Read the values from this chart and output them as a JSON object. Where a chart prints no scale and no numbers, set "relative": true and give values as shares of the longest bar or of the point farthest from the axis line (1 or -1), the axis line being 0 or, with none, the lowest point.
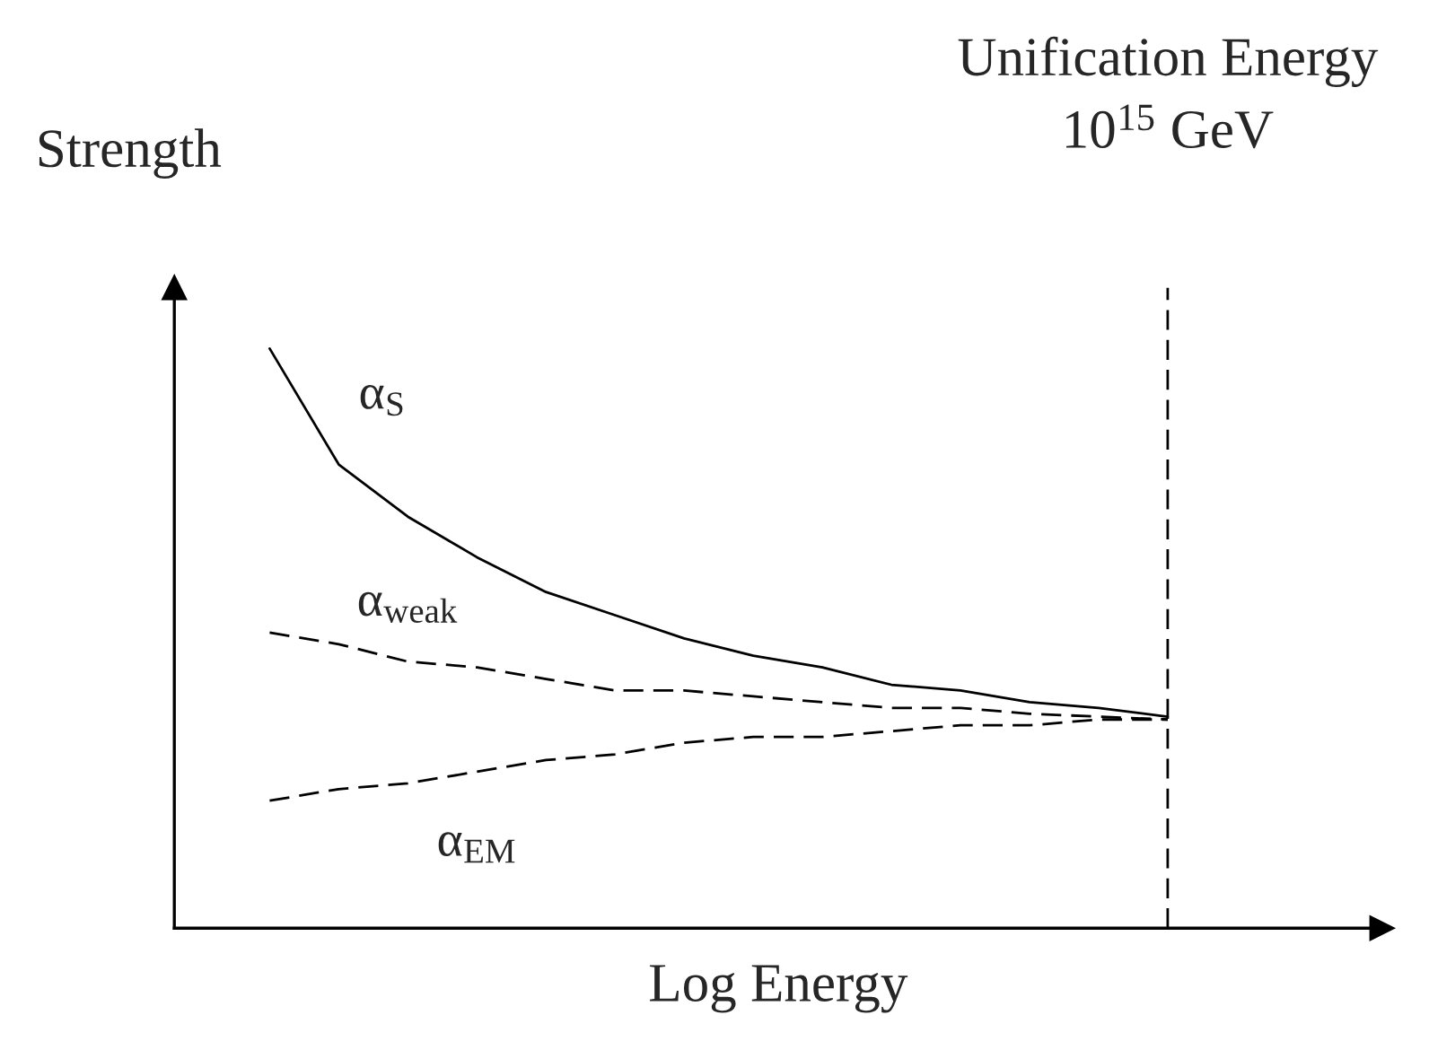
{
  "chart_data": {
    "type": "line",
    "relative": true,
    "xlabel": "Log Energy",
    "ylabel": "Strength",
    "categories": [
      null,
      null,
      null,
      null,
      null,
      null,
      null,
      null,
      null,
      null,
      null,
      null,
      null,
      null
    ],
    "series": [
      {
        "name": "α$_{S}$",
        "color": "#000000",
        "line_style": "solid",
        "values": [
          1.0,
          0.8,
          0.71,
          0.64,
          0.58,
          0.54,
          0.5,
          0.47,
          0.45,
          0.42,
          0.41,
          0.39,
          0.38,
          0.365
        ]
      },
      {
        "name": "α$_{weak}$",
        "color": "#000000",
        "line_style": "dashed",
        "values": [
          0.51,
          0.49,
          0.46,
          0.45,
          0.43,
          0.41,
          0.41,
          0.4,
          0.39,
          0.38,
          0.38,
          0.37,
          0.365,
          0.36
        ]
      },
      {
        "name": "α$_{EM}$",
        "color": "#000000",
        "line_style": "dashed",
        "values": [
          0.22,
          0.24,
          0.25,
          0.27,
          0.29,
          0.3,
          0.32,
          0.33,
          0.33,
          0.34,
          0.35,
          0.35,
          0.36,
          0.36
        ]
      }
    ],
    "annotations": [
      "Unification Energy\n10$^{15}$ GeV"
    ],
    "legend": false,
    "marker": "none",
    "tick_labels": false
  }
}
